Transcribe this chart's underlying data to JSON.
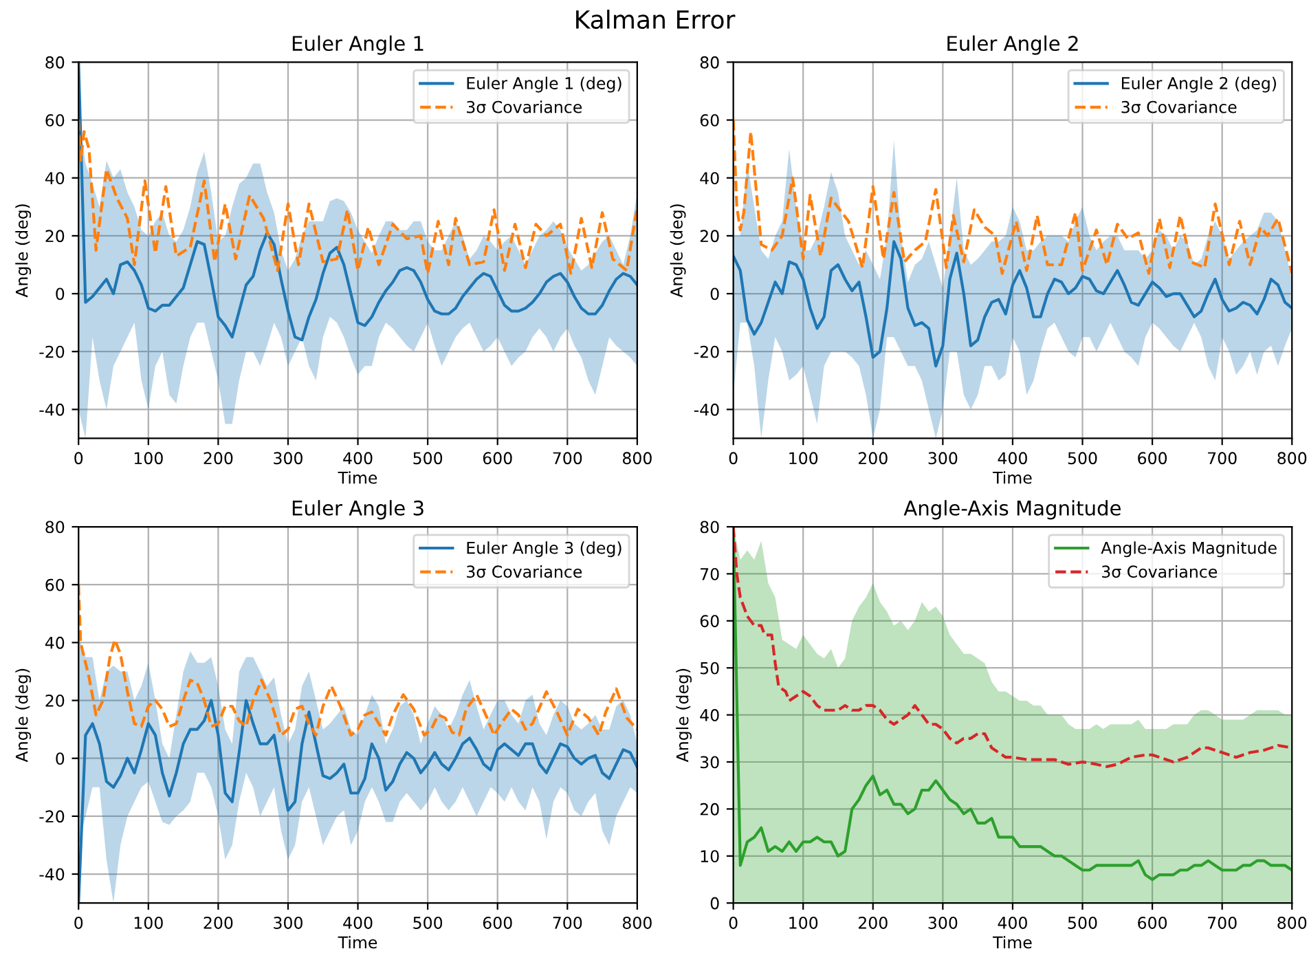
{
  "chart_data": [
    {
      "type": "line",
      "title": "Euler Angle 1",
      "xlabel": "Time",
      "ylabel": "Angle (deg)",
      "annotations": [
        "Kalman Error"
      ],
      "xlim": [
        0,
        800
      ],
      "xticks": [
        0,
        100,
        200,
        300,
        400,
        500,
        600,
        700,
        800
      ],
      "ylim": [
        -50,
        80
      ],
      "yticks": [
        -40,
        -20,
        0,
        20,
        40,
        60,
        80
      ],
      "grid": true,
      "legend": "top right",
      "series": [
        {
          "name": "Euler Angle 1 (deg)",
          "color": "#1f77b4",
          "line_style": "solid",
          "x": [
            0,
            10,
            20,
            30,
            40,
            50,
            60,
            70,
            80,
            90,
            100,
            110,
            120,
            130,
            140,
            150,
            160,
            170,
            180,
            190,
            200,
            210,
            220,
            230,
            240,
            250,
            260,
            270,
            280,
            290,
            300,
            310,
            320,
            330,
            340,
            350,
            360,
            370,
            380,
            390,
            400,
            410,
            420,
            430,
            440,
            450,
            460,
            470,
            480,
            490,
            500,
            510,
            520,
            530,
            540,
            550,
            560,
            570,
            580,
            590,
            600,
            610,
            620,
            630,
            640,
            650,
            660,
            670,
            680,
            690,
            700,
            710,
            720,
            730,
            740,
            750,
            760,
            770,
            780,
            790,
            800
          ],
          "values": [
            80,
            -3,
            -1,
            2,
            5,
            0,
            10,
            11,
            8,
            3,
            -5,
            -6,
            -4,
            -4,
            -1,
            2,
            10,
            18,
            17,
            5,
            -8,
            -11,
            -15,
            -6,
            3,
            6,
            15,
            21,
            17,
            5,
            -6,
            -15,
            -16,
            -8,
            -2,
            7,
            14,
            16,
            10,
            0,
            -10,
            -11,
            -8,
            -3,
            1,
            4,
            8,
            9,
            8,
            4,
            -2,
            -6,
            -7,
            -7,
            -5,
            -1,
            2,
            5,
            7,
            6,
            1,
            -4,
            -6,
            -6,
            -5,
            -3,
            0,
            4,
            6,
            7,
            4,
            -1,
            -5,
            -7,
            -7,
            -4,
            1,
            5,
            7,
            6,
            3
          ],
          "upper": [
            62,
            45,
            38,
            30,
            46,
            40,
            43,
            35,
            30,
            22,
            20,
            25,
            28,
            20,
            18,
            22,
            30,
            42,
            49,
            35,
            18,
            20,
            30,
            38,
            40,
            45,
            45,
            35,
            28,
            15,
            8,
            12,
            20,
            25,
            25,
            25,
            32,
            33,
            32,
            28,
            22,
            18,
            14,
            20,
            25,
            25,
            22,
            22,
            25,
            25,
            18,
            15,
            15,
            20,
            25,
            20,
            12,
            15,
            20,
            18,
            15,
            18,
            20,
            15,
            10,
            15,
            20,
            22,
            25,
            22,
            16,
            12,
            8,
            10,
            14,
            18,
            20,
            15,
            10,
            20,
            35
          ],
          "lower": [
            -40,
            -50,
            -15,
            -30,
            -40,
            -25,
            -20,
            -15,
            -10,
            -30,
            -40,
            -25,
            -20,
            -35,
            -38,
            -25,
            -15,
            -10,
            -10,
            -20,
            -30,
            -45,
            -45,
            -30,
            -20,
            -20,
            -25,
            -18,
            -10,
            -15,
            -25,
            -20,
            -15,
            -25,
            -30,
            -15,
            -8,
            -10,
            -15,
            -22,
            -28,
            -25,
            -25,
            -15,
            -10,
            -12,
            -15,
            -18,
            -20,
            -15,
            -10,
            -18,
            -25,
            -20,
            -15,
            -12,
            -10,
            -15,
            -20,
            -18,
            -15,
            -20,
            -25,
            -22,
            -20,
            -15,
            -12,
            -15,
            -20,
            -15,
            -12,
            -18,
            -22,
            -30,
            -35,
            -25,
            -15,
            -18,
            -20,
            -22,
            -25
          ]
        },
        {
          "name": "3σ Covariance",
          "color": "#ff7f0e",
          "line_style": "dashed",
          "x": [
            0,
            3,
            8,
            15,
            25,
            40,
            55,
            70,
            80,
            95,
            110,
            125,
            140,
            160,
            180,
            195,
            210,
            225,
            245,
            265,
            285,
            300,
            315,
            330,
            350,
            370,
            385,
            400,
            415,
            430,
            450,
            470,
            490,
            500,
            515,
            530,
            540,
            560,
            580,
            595,
            610,
            625,
            640,
            655,
            670,
            690,
            705,
            720,
            735,
            750,
            765,
            785,
            800
          ],
          "values": [
            60,
            46,
            56,
            50,
            15,
            43,
            33,
            26,
            10,
            39,
            14,
            37,
            13,
            16,
            39,
            11,
            31,
            12,
            34,
            26,
            8,
            31,
            10,
            31,
            11,
            12,
            29,
            8,
            23,
            10,
            24,
            19,
            20,
            7,
            25,
            10,
            26,
            10,
            11,
            29,
            8,
            24,
            9,
            24,
            20,
            24,
            7,
            26,
            9,
            28,
            12,
            8,
            30
          ]
        }
      ]
    },
    {
      "type": "line",
      "title": "Euler Angle 2",
      "xlabel": "Time",
      "ylabel": "Angle (deg)",
      "xlim": [
        0,
        800
      ],
      "xticks": [
        0,
        100,
        200,
        300,
        400,
        500,
        600,
        700,
        800
      ],
      "ylim": [
        -50,
        80
      ],
      "yticks": [
        -40,
        -20,
        0,
        20,
        40,
        60,
        80
      ],
      "grid": true,
      "legend": "top right",
      "series": [
        {
          "name": "Euler Angle 2 (deg)",
          "color": "#1f77b4",
          "line_style": "solid",
          "x": [
            0,
            10,
            20,
            30,
            40,
            50,
            60,
            70,
            80,
            90,
            100,
            110,
            120,
            130,
            140,
            150,
            160,
            170,
            180,
            190,
            200,
            210,
            220,
            230,
            240,
            250,
            260,
            270,
            280,
            290,
            300,
            310,
            320,
            330,
            340,
            350,
            360,
            370,
            380,
            390,
            400,
            410,
            420,
            430,
            440,
            450,
            460,
            470,
            480,
            490,
            500,
            510,
            520,
            530,
            540,
            550,
            560,
            570,
            580,
            590,
            600,
            610,
            620,
            630,
            640,
            650,
            660,
            670,
            680,
            690,
            700,
            710,
            720,
            730,
            740,
            750,
            760,
            770,
            780,
            790,
            800
          ],
          "values": [
            13,
            8,
            -9,
            -14,
            -10,
            -3,
            4,
            0,
            11,
            10,
            5,
            -5,
            -12,
            -8,
            8,
            10,
            5,
            1,
            4,
            -8,
            -22,
            -20,
            -5,
            18,
            12,
            -5,
            -11,
            -10,
            -12,
            -25,
            -18,
            5,
            14,
            0,
            -18,
            -16,
            -8,
            -3,
            -2,
            -7,
            3,
            8,
            2,
            -8,
            -8,
            0,
            5,
            4,
            0,
            2,
            6,
            5,
            1,
            0,
            4,
            8,
            3,
            -3,
            -4,
            0,
            4,
            2,
            -1,
            0,
            0,
            -4,
            -8,
            -6,
            0,
            5,
            -2,
            -6,
            -5,
            -3,
            -4,
            -7,
            -2,
            5,
            3,
            -3,
            -5
          ],
          "upper": [
            20,
            20,
            45,
            30,
            15,
            12,
            20,
            25,
            50,
            30,
            15,
            15,
            20,
            30,
            42,
            35,
            20,
            15,
            10,
            15,
            10,
            5,
            20,
            53,
            20,
            4,
            10,
            12,
            18,
            10,
            2,
            20,
            40,
            15,
            10,
            12,
            15,
            18,
            18,
            20,
            30,
            25,
            15,
            15,
            18,
            20,
            20,
            20,
            18,
            25,
            30,
            20,
            15,
            18,
            20,
            20,
            15,
            15,
            15,
            12,
            15,
            22,
            20,
            15,
            20,
            18,
            10,
            12,
            20,
            25,
            20,
            12,
            15,
            18,
            20,
            22,
            28,
            28,
            25,
            15,
            5
          ],
          "lower": [
            -35,
            -10,
            -10,
            -25,
            -50,
            -30,
            -15,
            -20,
            -30,
            -28,
            -25,
            -35,
            -45,
            -25,
            -20,
            -20,
            -20,
            -22,
            -25,
            -35,
            -50,
            -40,
            -15,
            -15,
            -20,
            -25,
            -25,
            -30,
            -40,
            -50,
            -40,
            -20,
            -20,
            -35,
            -40,
            -35,
            -25,
            -25,
            -30,
            -28,
            -15,
            -20,
            -35,
            -30,
            -20,
            -12,
            -10,
            -15,
            -20,
            -22,
            -15,
            -15,
            -20,
            -15,
            -10,
            -15,
            -20,
            -22,
            -25,
            -15,
            -10,
            -12,
            -15,
            -18,
            -20,
            -15,
            -10,
            -15,
            -25,
            -30,
            -15,
            -20,
            -28,
            -25,
            -20,
            -28,
            -20,
            -18,
            -25,
            -18,
            -12
          ]
        },
        {
          "name": "3σ Covariance",
          "color": "#ff7f0e",
          "line_style": "dashed",
          "x": [
            0,
            5,
            10,
            15,
            25,
            40,
            55,
            70,
            85,
            100,
            110,
            125,
            140,
            165,
            185,
            200,
            215,
            230,
            245,
            260,
            275,
            290,
            305,
            315,
            330,
            345,
            360,
            375,
            385,
            405,
            420,
            435,
            450,
            470,
            490,
            500,
            520,
            535,
            550,
            565,
            580,
            595,
            610,
            625,
            640,
            655,
            675,
            690,
            710,
            725,
            740,
            755,
            765,
            780,
            800
          ],
          "values": [
            60,
            30,
            22,
            28,
            56,
            17,
            15,
            20,
            40,
            12,
            34,
            13,
            33,
            25,
            9,
            37,
            12,
            35,
            11,
            15,
            18,
            36,
            9,
            27,
            11,
            29,
            23,
            20,
            7,
            25,
            8,
            27,
            10,
            10,
            28,
            8,
            22,
            10,
            24,
            19,
            21,
            7,
            26,
            9,
            27,
            11,
            9,
            31,
            10,
            25,
            10,
            23,
            20,
            26,
            7
          ]
        }
      ]
    },
    {
      "type": "line",
      "title": "Euler Angle 3",
      "xlabel": "Time",
      "ylabel": "Angle (deg)",
      "xlim": [
        0,
        800
      ],
      "xticks": [
        0,
        100,
        200,
        300,
        400,
        500,
        600,
        700,
        800
      ],
      "ylim": [
        -50,
        80
      ],
      "yticks": [
        -40,
        -20,
        0,
        20,
        40,
        60,
        80
      ],
      "grid": true,
      "legend": "top right",
      "series": [
        {
          "name": "Euler Angle 3 (deg)",
          "color": "#1f77b4",
          "line_style": "solid",
          "x": [
            0,
            10,
            20,
            30,
            40,
            50,
            60,
            70,
            80,
            90,
            100,
            110,
            120,
            130,
            140,
            150,
            160,
            170,
            180,
            190,
            200,
            210,
            220,
            230,
            240,
            250,
            260,
            270,
            280,
            290,
            300,
            310,
            320,
            330,
            340,
            350,
            360,
            370,
            380,
            390,
            400,
            410,
            420,
            430,
            440,
            450,
            460,
            470,
            480,
            490,
            500,
            510,
            520,
            530,
            540,
            550,
            560,
            570,
            580,
            590,
            600,
            610,
            620,
            630,
            640,
            650,
            660,
            670,
            680,
            690,
            700,
            710,
            720,
            730,
            740,
            750,
            760,
            770,
            780,
            790,
            800
          ],
          "values": [
            -50,
            8,
            12,
            5,
            -8,
            -10,
            -6,
            0,
            -5,
            3,
            12,
            8,
            -5,
            -13,
            -5,
            5,
            10,
            10,
            13,
            20,
            8,
            -12,
            -15,
            2,
            20,
            12,
            5,
            5,
            8,
            -5,
            -18,
            -15,
            5,
            16,
            5,
            -6,
            -7,
            -5,
            -2,
            -12,
            -12,
            -7,
            5,
            0,
            -11,
            -8,
            -2,
            2,
            0,
            -5,
            -2,
            2,
            -2,
            -4,
            0,
            5,
            7,
            3,
            -2,
            -4,
            3,
            5,
            3,
            1,
            5,
            5,
            -2,
            -5,
            0,
            5,
            4,
            0,
            -2,
            0,
            1,
            -5,
            -7,
            -2,
            3,
            2,
            -3
          ],
          "upper": [
            42,
            35,
            35,
            20,
            30,
            32,
            30,
            30,
            20,
            25,
            33,
            20,
            5,
            0,
            15,
            30,
            37,
            33,
            33,
            35,
            25,
            10,
            5,
            30,
            35,
            35,
            30,
            25,
            28,
            15,
            5,
            10,
            25,
            30,
            20,
            10,
            12,
            15,
            18,
            10,
            8,
            15,
            22,
            18,
            5,
            10,
            18,
            20,
            15,
            5,
            12,
            18,
            15,
            10,
            15,
            22,
            27,
            18,
            10,
            15,
            20,
            20,
            15,
            12,
            20,
            22,
            12,
            8,
            15,
            20,
            18,
            12,
            10,
            12,
            15,
            10,
            10,
            18,
            20,
            15,
            5
          ],
          "lower": [
            -30,
            -20,
            -10,
            -10,
            -35,
            -50,
            -30,
            -20,
            -15,
            -10,
            -8,
            -15,
            -22,
            -23,
            -20,
            -18,
            -15,
            -5,
            -5,
            -10,
            -20,
            -35,
            -30,
            -15,
            -5,
            -10,
            -20,
            -15,
            -10,
            -25,
            -35,
            -30,
            -15,
            -10,
            -20,
            -30,
            -25,
            -20,
            -18,
            -30,
            -25,
            -15,
            -10,
            -15,
            -22,
            -22,
            -15,
            -12,
            -15,
            -18,
            -15,
            -10,
            -15,
            -18,
            -15,
            -10,
            -15,
            -20,
            -15,
            -10,
            -12,
            -15,
            -10,
            -15,
            -18,
            -10,
            -15,
            -28,
            -15,
            -10,
            -12,
            -18,
            -20,
            -15,
            -12,
            -25,
            -30,
            -20,
            -15,
            -10,
            -12
          ]
        },
        {
          "name": "3σ Covariance",
          "color": "#ff7f0e",
          "line_style": "dashed",
          "x": [
            0,
            3,
            8,
            15,
            25,
            35,
            45,
            52,
            60,
            70,
            80,
            90,
            100,
            110,
            120,
            130,
            140,
            150,
            160,
            170,
            180,
            190,
            200,
            210,
            220,
            230,
            240,
            250,
            262,
            275,
            290,
            300,
            310,
            320,
            330,
            340,
            350,
            362,
            375,
            390,
            400,
            410,
            420,
            430,
            440,
            450,
            465,
            480,
            495,
            505,
            515,
            525,
            535,
            545,
            555,
            570,
            585,
            595,
            605,
            620,
            630,
            640,
            650,
            670,
            685,
            700,
            715,
            730,
            745,
            755,
            770,
            785,
            800
          ],
          "values": [
            60,
            40,
            35,
            28,
            15,
            20,
            35,
            41,
            36,
            23,
            12,
            11,
            18,
            20,
            17,
            11,
            12,
            20,
            27,
            26,
            20,
            11,
            12,
            18,
            18,
            13,
            11,
            20,
            27,
            20,
            8,
            10,
            17,
            18,
            12,
            8,
            18,
            25,
            18,
            8,
            10,
            15,
            16,
            12,
            8,
            15,
            22,
            17,
            8,
            10,
            15,
            14,
            9,
            8,
            17,
            22,
            14,
            8,
            12,
            17,
            15,
            10,
            12,
            23,
            16,
            8,
            17,
            14,
            8,
            16,
            24,
            14,
            10
          ]
        }
      ]
    },
    {
      "type": "line",
      "title": "Angle-Axis Magnitude",
      "xlabel": "Time",
      "ylabel": "Angle (deg)",
      "xlim": [
        0,
        800
      ],
      "xticks": [
        0,
        100,
        200,
        300,
        400,
        500,
        600,
        700,
        800
      ],
      "ylim": [
        0,
        80
      ],
      "yticks": [
        0,
        10,
        20,
        30,
        40,
        50,
        60,
        70,
        80
      ],
      "grid": true,
      "legend": "top right",
      "series": [
        {
          "name": "Angle-Axis Magnitude",
          "color": "#2ca02c",
          "line_style": "solid",
          "x": [
            0,
            10,
            20,
            30,
            40,
            50,
            60,
            70,
            80,
            90,
            100,
            110,
            120,
            130,
            140,
            150,
            160,
            170,
            180,
            190,
            200,
            210,
            220,
            230,
            240,
            250,
            260,
            270,
            280,
            290,
            300,
            310,
            320,
            330,
            340,
            350,
            360,
            370,
            380,
            390,
            400,
            410,
            420,
            430,
            440,
            450,
            460,
            470,
            480,
            490,
            500,
            510,
            520,
            530,
            540,
            550,
            560,
            570,
            580,
            590,
            600,
            610,
            620,
            630,
            640,
            650,
            660,
            670,
            680,
            690,
            700,
            710,
            720,
            730,
            740,
            750,
            760,
            770,
            780,
            790,
            800
          ],
          "values": [
            80,
            8,
            13,
            14,
            16,
            11,
            12,
            11,
            13,
            11,
            13,
            13,
            14,
            13,
            13,
            10,
            11,
            20,
            22,
            25,
            27,
            23,
            24,
            21,
            21,
            19,
            20,
            24,
            24,
            26,
            24,
            22,
            21,
            19,
            20,
            17,
            17,
            18,
            14,
            14,
            14,
            12,
            12,
            12,
            12,
            11,
            10,
            10,
            9,
            8,
            7,
            7,
            8,
            8,
            8,
            8,
            8,
            8,
            9,
            6,
            5,
            6,
            6,
            6,
            7,
            7,
            8,
            8,
            9,
            8,
            7,
            7,
            7,
            8,
            8,
            9,
            9,
            8,
            8,
            8,
            7
          ],
          "upper": [
            80,
            73,
            75,
            73,
            77,
            68,
            65,
            56,
            55,
            54,
            57,
            55,
            53,
            52,
            54,
            50,
            52,
            60,
            63,
            65,
            68,
            64,
            62,
            59,
            60,
            58,
            60,
            64,
            62,
            63,
            61,
            57,
            55,
            53,
            53,
            52,
            51,
            47,
            45,
            45,
            44,
            43,
            43,
            42,
            42,
            40,
            40,
            40,
            38,
            37,
            37,
            37,
            38,
            37,
            38,
            38,
            38,
            38,
            39,
            37,
            37,
            37,
            37,
            38,
            38,
            38,
            40,
            41,
            41,
            40,
            39,
            39,
            39,
            39,
            40,
            41,
            41,
            41,
            41,
            40,
            40
          ],
          "lower": [
            0,
            0,
            0,
            0,
            0,
            0,
            0,
            0,
            0,
            0,
            0,
            0,
            0,
            0,
            0,
            0,
            0,
            0,
            0,
            0,
            0,
            0,
            0,
            0,
            0,
            0,
            0,
            0,
            0,
            0,
            0,
            0,
            0,
            0,
            0,
            0,
            0,
            0,
            0,
            0,
            0,
            0,
            0,
            0,
            0,
            0,
            0,
            0,
            0,
            0,
            0,
            0,
            0,
            0,
            0,
            0,
            0,
            0,
            0,
            0,
            0,
            0,
            0,
            0,
            0,
            0,
            0,
            0,
            0,
            0,
            0,
            0,
            0,
            0,
            0,
            0,
            0,
            0,
            0,
            0,
            0
          ]
        },
        {
          "name": "3σ Covariance",
          "color": "#d62728",
          "line_style": "dashed",
          "x": [
            0,
            5,
            10,
            15,
            20,
            30,
            40,
            45,
            55,
            60,
            65,
            75,
            80,
            90,
            100,
            110,
            120,
            130,
            140,
            150,
            160,
            170,
            180,
            190,
            200,
            210,
            220,
            230,
            240,
            250,
            260,
            270,
            280,
            290,
            300,
            310,
            320,
            330,
            340,
            350,
            360,
            370,
            380,
            390,
            400,
            420,
            440,
            460,
            470,
            480,
            500,
            520,
            535,
            550,
            570,
            590,
            600,
            610,
            630,
            650,
            670,
            680,
            700,
            720,
            740,
            760,
            780,
            800
          ],
          "values": [
            80,
            70,
            65,
            63,
            61,
            59,
            59,
            57,
            57,
            51,
            46,
            45,
            43,
            44,
            45,
            44,
            42,
            41,
            41,
            41,
            42,
            41,
            41,
            42,
            42,
            41,
            39,
            38,
            39,
            40,
            42,
            40,
            38,
            38,
            37,
            35,
            34,
            35,
            35,
            36,
            36,
            33,
            32,
            31,
            31,
            30.5,
            30.5,
            30.5,
            30,
            29.5,
            30,
            29.5,
            29,
            29.5,
            31,
            31.5,
            31.5,
            31,
            30,
            31,
            33,
            33,
            32,
            31,
            32,
            32.5,
            33.5,
            33
          ]
        }
      ]
    }
  ]
}
